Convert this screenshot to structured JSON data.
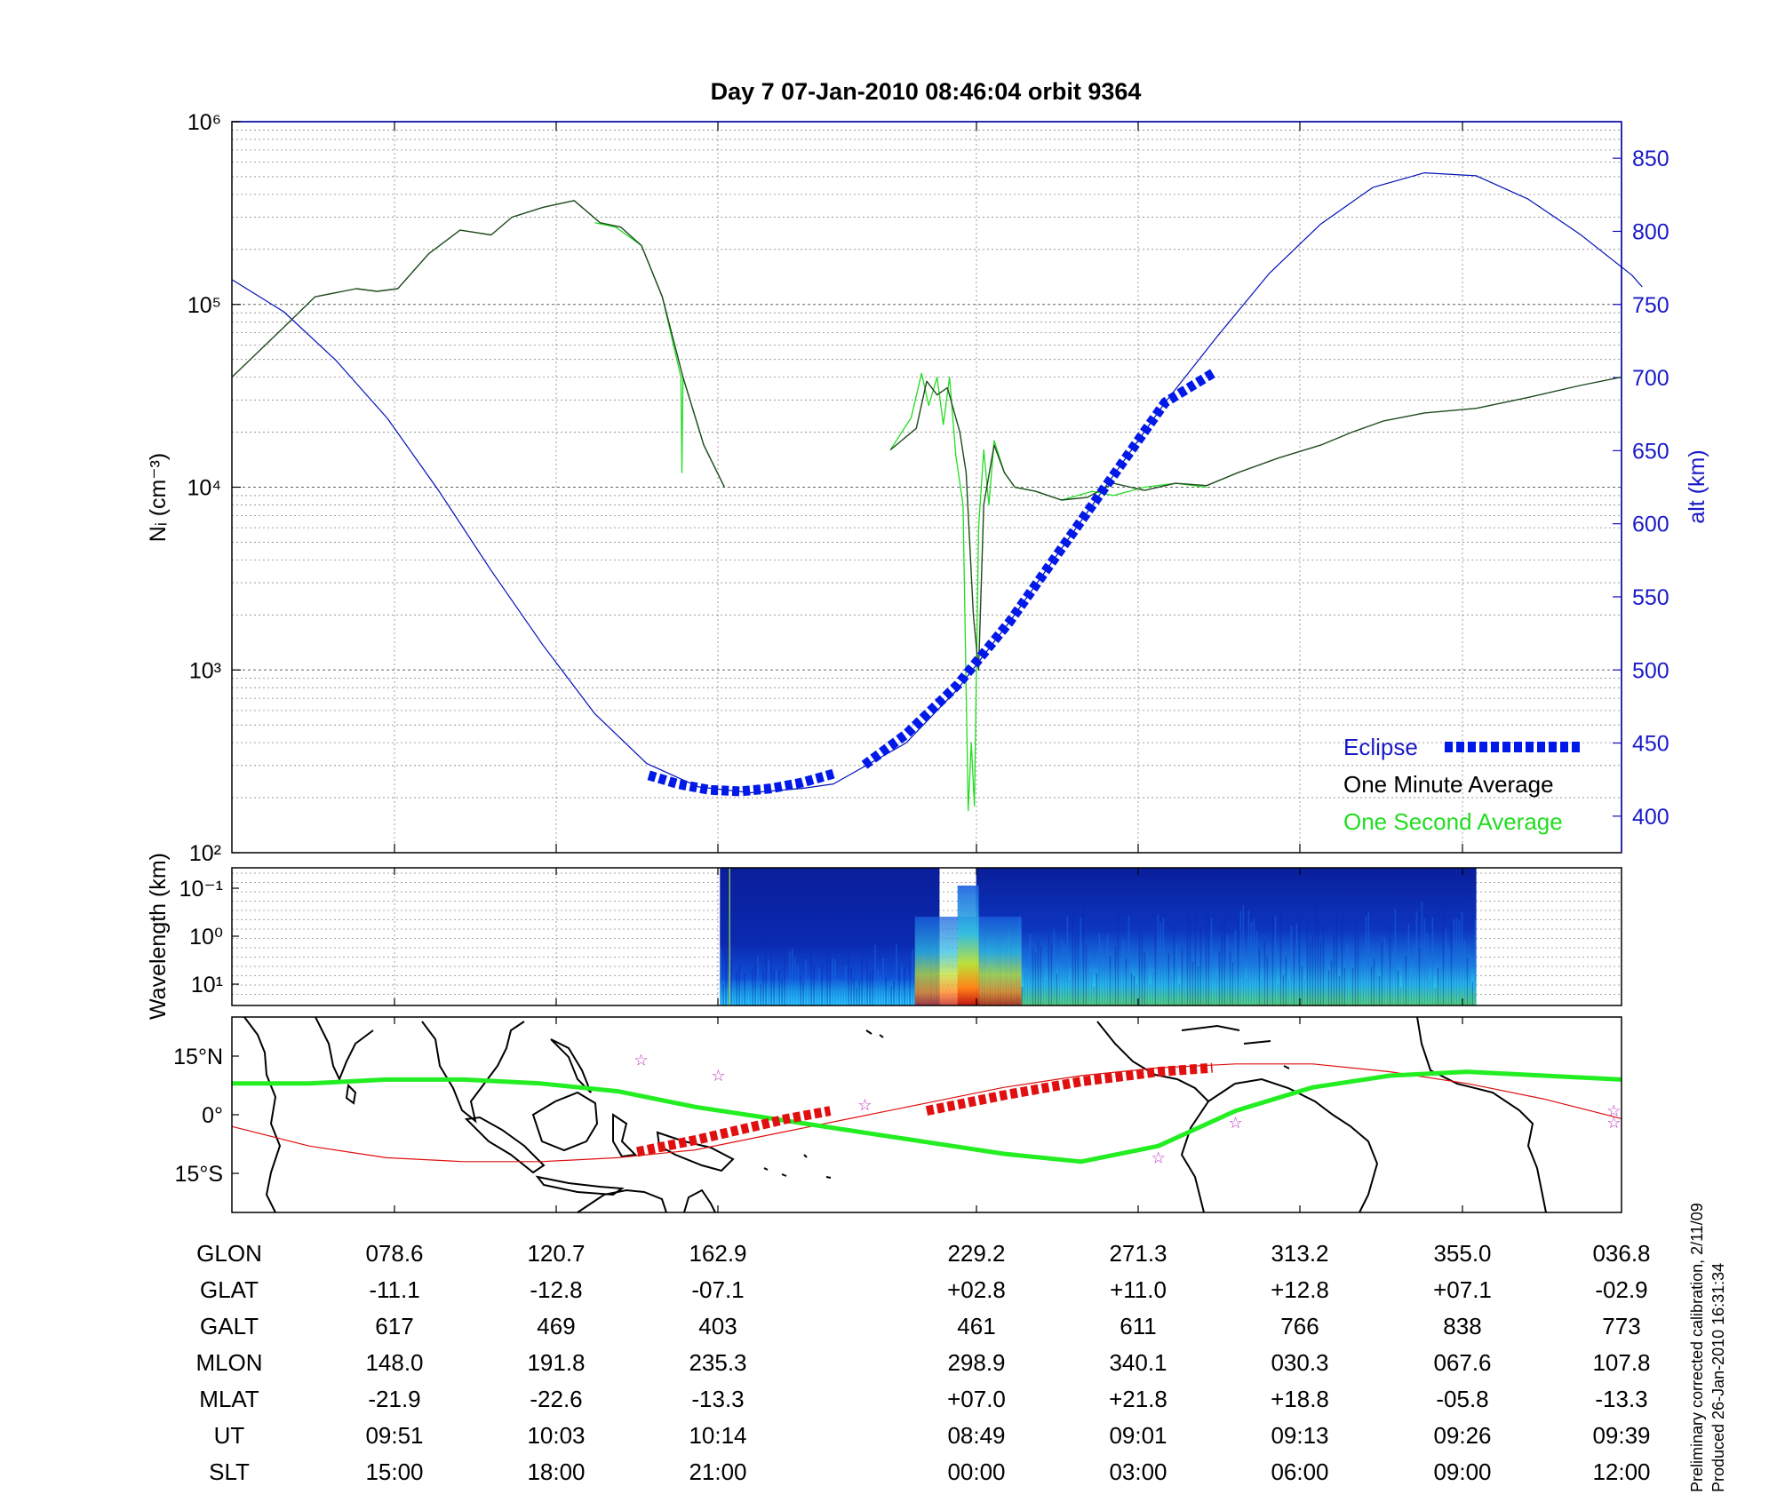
{
  "title": "Day 7  07-Jan-2010 08:46:04   orbit 9364",
  "footnote": [
    "Preliminary corrected calibration, 2/11/09",
    "Produced 26-Jan-2010 16:31:34"
  ],
  "colors": {
    "eclipse": "#0018e8",
    "alt_line": "#0010b8",
    "minute_avg": "#1e4a1e",
    "second_avg": "#22dd22",
    "track_green": "#22ee22",
    "track_red": "#e01010",
    "star": "#c030c0"
  },
  "chart_data": [
    {
      "type": "line",
      "panel": "density",
      "ylabel": "Nᵢ (cm⁻³)",
      "y_scale": "log",
      "ylim": [
        100,
        1000000
      ],
      "y_ticks": [
        "10²",
        "10³",
        "10⁴",
        "10⁵",
        "10⁶"
      ],
      "y2label": "alt (km)",
      "y2lim": [
        375,
        875
      ],
      "y2_ticks": [
        400,
        450,
        500,
        550,
        600,
        650,
        700,
        750,
        800,
        850
      ],
      "x_index_range": [
        0,
        8.5
      ],
      "grid": true,
      "legend": [
        {
          "label": "Eclipse",
          "color": "#0018e8"
        },
        {
          "label": "One Minute Average",
          "color": "#000000"
        },
        {
          "label": "One Second Average",
          "color": "#22dd22"
        }
      ],
      "legend_position": "bottom-right",
      "series": [
        {
          "name": "One Minute Average",
          "segments": [
            [
              [
                0,
                40000
              ],
              [
                0.5,
                75000
              ],
              [
                0.8,
                110000
              ],
              [
                1.2,
                122000
              ],
              [
                1.4,
                118000
              ],
              [
                1.6,
                122000
              ],
              [
                1.9,
                190000
              ],
              [
                2.2,
                255000
              ],
              [
                2.5,
                240000
              ],
              [
                2.7,
                300000
              ],
              [
                3.0,
                340000
              ],
              [
                3.3,
                370000
              ],
              [
                3.55,
                280000
              ],
              [
                3.75,
                265000
              ],
              [
                3.95,
                210000
              ],
              [
                4.15,
                110000
              ],
              [
                4.35,
                40000
              ],
              [
                4.55,
                17000
              ],
              [
                4.75,
                10000
              ]
            ],
            [
              [
                6.35,
                16000
              ],
              [
                6.6,
                21000
              ],
              [
                6.7,
                38000
              ],
              [
                6.8,
                32000
              ],
              [
                6.9,
                35000
              ],
              [
                7.02,
                20000
              ],
              [
                7.08,
                12000
              ],
              [
                7.15,
                2000
              ],
              [
                7.2,
                1000
              ],
              [
                7.25,
                8000
              ],
              [
                7.35,
                17000
              ],
              [
                7.45,
                12000
              ],
              [
                7.55,
                10000
              ],
              [
                7.75,
                9500
              ],
              [
                8.0,
                8500
              ],
              [
                8.25,
                8800
              ],
              [
                8.5,
                10500
              ],
              [
                8.8,
                9600
              ],
              [
                9.1,
                10500
              ],
              [
                9.4,
                10200
              ],
              [
                9.7,
                12000
              ],
              [
                10.1,
                14500
              ],
              [
                10.5,
                17000
              ],
              [
                10.8,
                20000
              ],
              [
                11.1,
                23000
              ],
              [
                11.5,
                25500
              ],
              [
                12.0,
                27000
              ],
              [
                12.5,
                31000
              ],
              [
                13.0,
                36000
              ],
              [
                13.4,
                40000
              ]
            ]
          ]
        },
        {
          "name": "One Second Average",
          "segments": [
            [
              [
                3.5,
                280000
              ],
              [
                3.7,
                265000
              ],
              [
                3.95,
                210000
              ],
              [
                4.15,
                110000
              ],
              [
                4.33,
                40000
              ],
              [
                4.34,
                12000
              ],
              [
                4.35,
                40000
              ],
              [
                4.55,
                17000
              ],
              [
                4.75,
                10000
              ]
            ],
            [
              [
                6.35,
                16000
              ],
              [
                6.55,
                24000
              ],
              [
                6.65,
                42000
              ],
              [
                6.72,
                28000
              ],
              [
                6.8,
                40000
              ],
              [
                6.86,
                22000
              ],
              [
                6.92,
                40000
              ],
              [
                6.98,
                15000
              ],
              [
                7.05,
                8000
              ],
              [
                7.1,
                170
              ],
              [
                7.13,
                400
              ],
              [
                7.16,
                180
              ],
              [
                7.2,
                6000
              ],
              [
                7.25,
                16000
              ],
              [
                7.3,
                8000
              ],
              [
                7.35,
                18000
              ],
              [
                7.45,
                12000
              ],
              [
                7.55,
                10000
              ],
              [
                7.75,
                9500
              ],
              [
                8.0,
                8500
              ],
              [
                8.3,
                9500
              ],
              [
                8.5,
                9000
              ],
              [
                8.8,
                10000
              ],
              [
                9.1,
                10500
              ],
              [
                9.4,
                10000
              ]
            ]
          ]
        },
        {
          "name": "alt (km)",
          "axis": "right",
          "segments": [
            [
              [
                0,
                767
              ],
              [
                0.5,
                745
              ],
              [
                1,
                712
              ],
              [
                1.5,
                672
              ],
              [
                2,
                622
              ],
              [
                2.5,
                568
              ],
              [
                3,
                517
              ],
              [
                3.5,
                470
              ],
              [
                4,
                436
              ],
              [
                4.5,
                420
              ],
              [
                5,
                416
              ],
              [
                5.5,
                419
              ],
              [
                5.8,
                422
              ]
            ],
            [
              [
                5.8,
                422
              ],
              [
                6.5,
                450
              ],
              [
                7,
                487
              ],
              [
                7.5,
                533
              ],
              [
                8,
                583
              ],
              [
                8.5,
                633
              ],
              [
                9,
                683
              ],
              [
                9.5,
                728
              ],
              [
                10,
                771
              ],
              [
                10.5,
                805
              ],
              [
                11,
                830
              ],
              [
                11.5,
                840
              ],
              [
                12,
                838
              ],
              [
                12.5,
                822
              ],
              [
                13,
                798
              ],
              [
                13.5,
                770
              ],
              [
                13.6,
                762
              ]
            ]
          ]
        },
        {
          "name": "Eclipse",
          "axis": "right",
          "segments": [
            [
              [
                4.02,
                428
              ],
              [
                4.3,
                422
              ],
              [
                4.6,
                418
              ],
              [
                4.9,
                417
              ],
              [
                5.2,
                419
              ],
              [
                5.5,
                423
              ],
              [
                5.8,
                429
              ]
            ],
            [
              [
                6.1,
                435
              ],
              [
                6.5,
                456
              ],
              [
                7,
                490
              ],
              [
                7.5,
                533
              ],
              [
                8,
                583
              ],
              [
                8.5,
                633
              ],
              [
                9,
                683
              ],
              [
                9.46,
                703
              ]
            ]
          ]
        }
      ]
    },
    {
      "type": "heatmap",
      "panel": "spectrogram",
      "ylabel": "Wavelength (km)",
      "y_ticks": [
        "10⁻¹",
        "10⁰",
        "10¹"
      ],
      "blocks": [
        {
          "x_start": 4.0,
          "x_end": 5.8
        },
        {
          "x_start": 6.1,
          "x_end": 10.2
        }
      ]
    },
    {
      "type": "line",
      "panel": "map",
      "y_ticks": [
        "15°N",
        "0°",
        "15°S"
      ],
      "ylim": [
        -25,
        25
      ],
      "series": [
        {
          "name": "geographic track",
          "points": [
            [
              0,
              8
            ],
            [
              1,
              8
            ],
            [
              2,
              9
            ],
            [
              3,
              9
            ],
            [
              4,
              8
            ],
            [
              5,
              6
            ],
            [
              6,
              2
            ],
            [
              7,
              -1
            ],
            [
              8,
              -4
            ],
            [
              9,
              -7
            ],
            [
              10,
              -10
            ],
            [
              11,
              -12
            ],
            [
              12,
              -8
            ],
            [
              13,
              1
            ],
            [
              14,
              7
            ],
            [
              15,
              10
            ],
            [
              16,
              11
            ],
            [
              17,
              10
            ],
            [
              18,
              9
            ]
          ]
        },
        {
          "name": "magnetic equator",
          "points": [
            [
              0,
              -3
            ],
            [
              1,
              -8
            ],
            [
              2,
              -11
            ],
            [
              3,
              -12
            ],
            [
              4,
              -12
            ],
            [
              5,
              -11
            ],
            [
              6,
              -9
            ],
            [
              7,
              -5
            ],
            [
              8,
              -1
            ],
            [
              9,
              3
            ],
            [
              10,
              7
            ],
            [
              11,
              10
            ],
            [
              12,
              12
            ],
            [
              13,
              13
            ],
            [
              14,
              13
            ],
            [
              15,
              11
            ],
            [
              16,
              8
            ],
            [
              17,
              4
            ],
            [
              18,
              -1
            ]
          ]
        },
        {
          "name": "eclipse track",
          "segments": [
            [
              [
                5.25,
                -9.5
              ],
              [
                6.0,
                -6.5
              ],
              [
                7.2,
                -1.0
              ],
              [
                7.75,
                1.0
              ]
            ],
            [
              [
                9.0,
                1.0
              ],
              [
                10.0,
                5.0
              ],
              [
                11.0,
                8.5
              ],
              [
                12.0,
                11.0
              ],
              [
                12.7,
                12.0
              ]
            ]
          ]
        }
      ],
      "stars": [
        [
          5.3,
          14
        ],
        [
          6.3,
          10
        ],
        [
          8.2,
          2.5
        ],
        [
          12.0,
          -11
        ],
        [
          13.0,
          -2
        ],
        [
          17.9,
          1.0
        ],
        [
          17.9,
          -2.0
        ]
      ]
    }
  ],
  "table": {
    "rows": [
      {
        "label": "GLON",
        "values": [
          "078.6",
          "120.7",
          "162.9",
          "229.2",
          "271.3",
          "313.2",
          "355.0",
          "036.8"
        ]
      },
      {
        "label": "GLAT",
        "values": [
          "-11.1",
          "-12.8",
          "-07.1",
          "+02.8",
          "+11.0",
          "+12.8",
          "+07.1",
          "-02.9"
        ]
      },
      {
        "label": "GALT",
        "values": [
          "617",
          "469",
          "403",
          "461",
          "611",
          "766",
          "838",
          "773"
        ]
      },
      {
        "label": "MLON",
        "values": [
          "148.0",
          "191.8",
          "235.3",
          "298.9",
          "340.1",
          "030.3",
          "067.6",
          "107.8"
        ]
      },
      {
        "label": "MLAT",
        "values": [
          "-21.9",
          "-22.6",
          "-13.3",
          "+07.0",
          "+21.8",
          "+18.8",
          "-05.8",
          "-13.3"
        ]
      },
      {
        "label": "UT",
        "values": [
          "09:51",
          "10:03",
          "10:14",
          "08:49",
          "09:01",
          "09:13",
          "09:26",
          "09:39"
        ]
      },
      {
        "label": "SLT",
        "values": [
          "15:00",
          "18:00",
          "21:00",
          "00:00",
          "03:00",
          "06:00",
          "09:00",
          "12:00"
        ]
      }
    ]
  }
}
